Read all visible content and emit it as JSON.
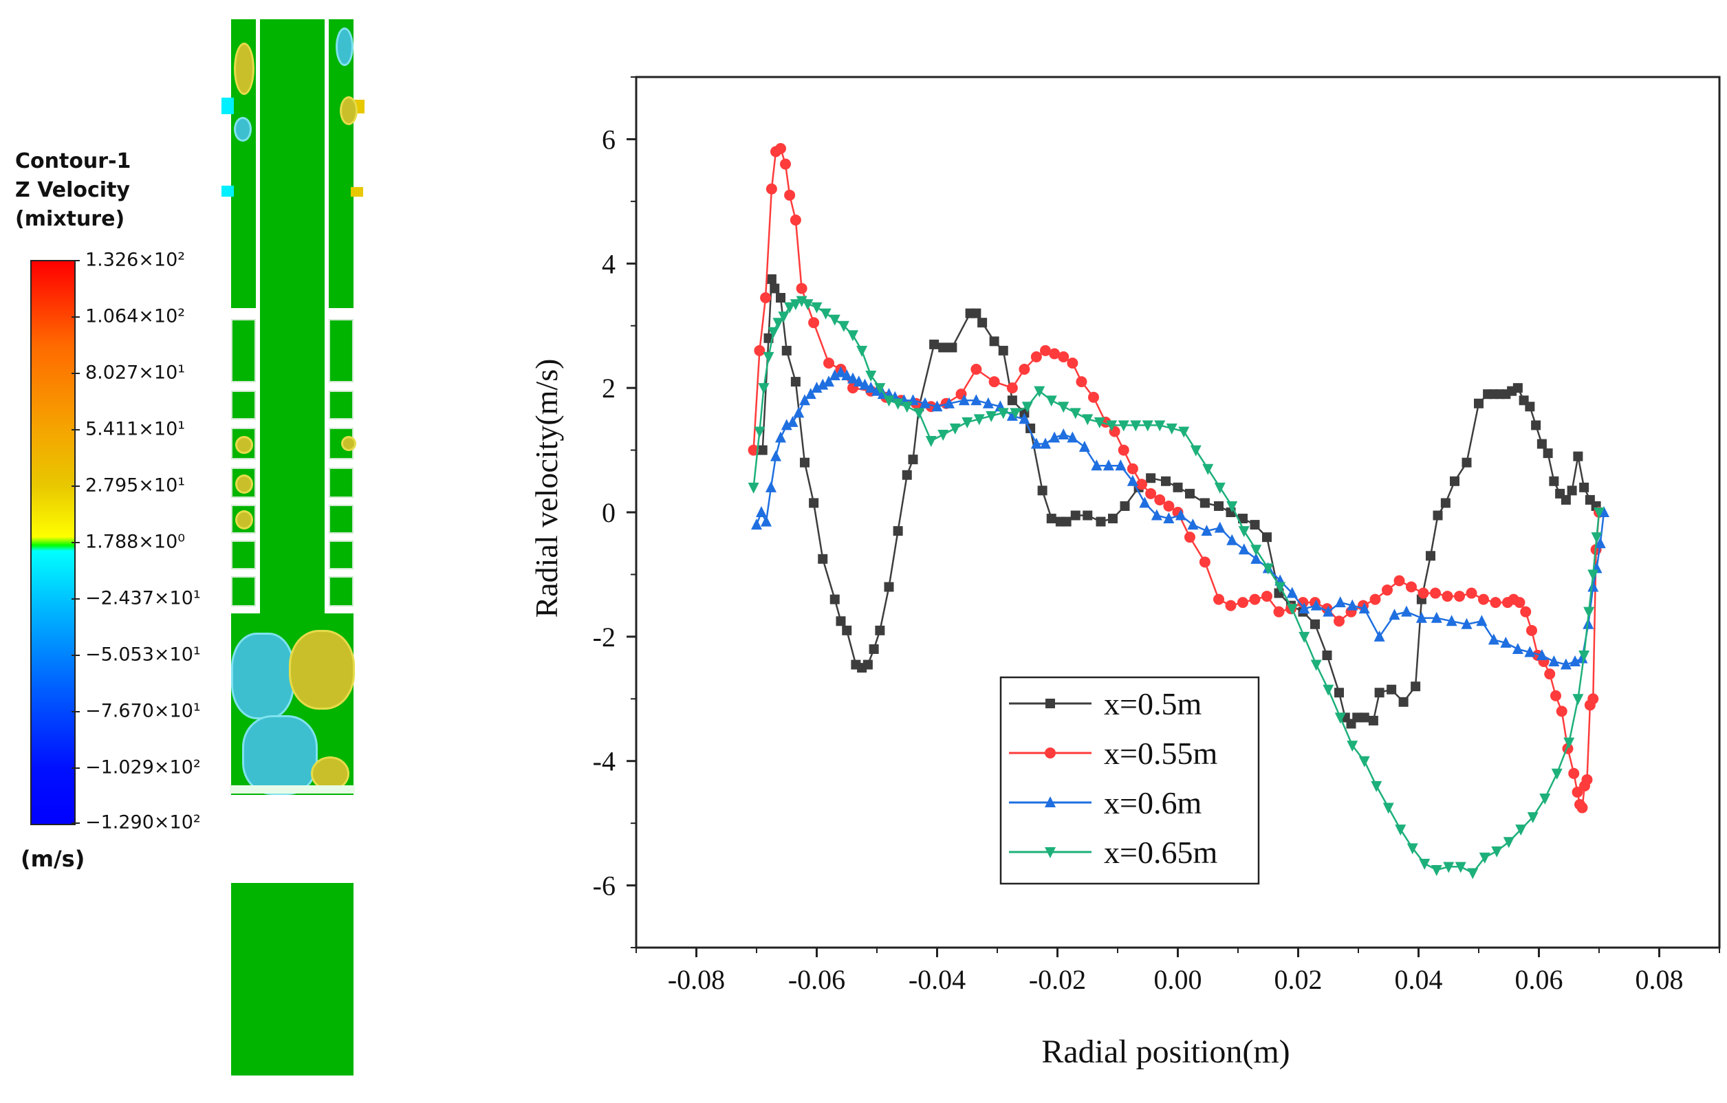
{
  "contour": {
    "title_lines": [
      "Contour-1",
      "Z Velocity",
      "(mixture)"
    ],
    "units": "(m/s)",
    "levels": [
      "1.326×10²",
      "1.064×10²",
      "8.027×10¹",
      "5.411×10¹",
      "2.795×10¹",
      "1.788×10⁰",
      "−2.437×10¹",
      "−5.053×10¹",
      "−7.670×10¹",
      "−1.029×10²",
      "−1.290×10²"
    ],
    "colors": {
      "max": "#ff0000",
      "mid": "#00ff00",
      "min": "#0000ff",
      "field": "#00b400"
    }
  },
  "chart_data": {
    "type": "line",
    "xlabel": "Radial position(m)",
    "ylabel": "Radial velocity(m/s)",
    "xlim": [
      -0.09,
      0.09
    ],
    "ylim": [
      -7,
      7
    ],
    "xticks": [
      -0.08,
      -0.06,
      -0.04,
      -0.02,
      0.0,
      0.02,
      0.04,
      0.06,
      0.08
    ],
    "xtick_labels": [
      "-0.08",
      "-0.06",
      "-0.04",
      "-0.02",
      "0.00",
      "0.02",
      "0.04",
      "0.06",
      "0.08"
    ],
    "yticks": [
      -6,
      -4,
      -2,
      0,
      2,
      4,
      6
    ],
    "ytick_labels": [
      "-6",
      "-4",
      "-2",
      "0",
      "2",
      "4",
      "6"
    ],
    "legend_position": "bottom-center",
    "series": [
      {
        "name": "x=0.5m",
        "color": "#3d3d3d",
        "marker": "square",
        "x": [
          -0.069,
          -0.068,
          -0.0675,
          -0.067,
          -0.066,
          -0.065,
          -0.0635,
          -0.062,
          -0.0605,
          -0.059,
          -0.057,
          -0.056,
          -0.055,
          -0.0535,
          -0.0525,
          -0.0515,
          -0.0505,
          -0.0495,
          -0.048,
          -0.0465,
          -0.045,
          -0.044,
          -0.043,
          -0.0405,
          -0.039,
          -0.0375,
          -0.0345,
          -0.0335,
          -0.0325,
          -0.0305,
          -0.029,
          -0.0275,
          -0.0255,
          -0.0245,
          -0.0225,
          -0.021,
          -0.0195,
          -0.0185,
          -0.017,
          -0.015,
          -0.0128,
          -0.0108,
          -0.0088,
          -0.0065,
          -0.0045,
          -0.002,
          0.0,
          0.002,
          0.0045,
          0.0068,
          0.0088,
          0.0108,
          0.0128,
          0.0148,
          0.0168,
          0.0188,
          0.0208,
          0.0228,
          0.0248,
          0.0268,
          0.0278,
          0.0288,
          0.0298,
          0.031,
          0.0325,
          0.0335,
          0.0355,
          0.0375,
          0.0395,
          0.0405,
          0.042,
          0.0432,
          0.0445,
          0.046,
          0.048,
          0.05,
          0.0515,
          0.0525,
          0.0535,
          0.0545,
          0.0555,
          0.0565,
          0.0575,
          0.0585,
          0.0595,
          0.0605,
          0.0615,
          0.0625,
          0.0635,
          0.0645,
          0.0655,
          0.0665,
          0.0675,
          0.0685,
          0.0695
        ],
        "y": [
          1.0,
          2.8,
          3.75,
          3.6,
          3.45,
          2.6,
          2.1,
          0.8,
          0.15,
          -0.75,
          -1.4,
          -1.75,
          -1.9,
          -2.45,
          -2.5,
          -2.45,
          -2.2,
          -1.9,
          -1.2,
          -0.3,
          0.6,
          0.85,
          1.7,
          2.7,
          2.65,
          2.65,
          3.2,
          3.2,
          3.05,
          2.75,
          2.6,
          1.8,
          1.6,
          1.35,
          0.35,
          -0.1,
          -0.15,
          -0.15,
          -0.05,
          -0.05,
          -0.15,
          -0.1,
          0.1,
          0.4,
          0.55,
          0.5,
          0.4,
          0.3,
          0.15,
          0.1,
          0.0,
          -0.1,
          -0.2,
          -0.4,
          -1.3,
          -1.5,
          -1.6,
          -1.8,
          -2.3,
          -2.9,
          -3.3,
          -3.4,
          -3.3,
          -3.3,
          -3.35,
          -2.9,
          -2.85,
          -3.05,
          -2.8,
          -1.4,
          -0.7,
          -0.05,
          0.15,
          0.5,
          0.8,
          1.75,
          1.9,
          1.9,
          1.9,
          1.9,
          1.95,
          2.0,
          1.8,
          1.7,
          1.4,
          1.1,
          0.95,
          0.5,
          0.3,
          0.2,
          0.35,
          0.9,
          0.4,
          0.2,
          0.1
        ]
      },
      {
        "name": "x=0.55m",
        "color": "#ff3b3b",
        "marker": "circle",
        "x": [
          -0.0705,
          -0.0695,
          -0.0685,
          -0.0675,
          -0.0668,
          -0.066,
          -0.0652,
          -0.0645,
          -0.0635,
          -0.0625,
          -0.0605,
          -0.058,
          -0.056,
          -0.054,
          -0.051,
          -0.0485,
          -0.046,
          -0.0435,
          -0.041,
          -0.0385,
          -0.036,
          -0.0335,
          -0.0305,
          -0.0275,
          -0.0255,
          -0.0235,
          -0.022,
          -0.0205,
          -0.019,
          -0.0175,
          -0.016,
          -0.014,
          -0.012,
          -0.0105,
          -0.009,
          -0.0075,
          -0.006,
          -0.0045,
          -0.003,
          -0.0015,
          0.0,
          0.002,
          0.0045,
          0.0068,
          0.0088,
          0.0108,
          0.0128,
          0.0148,
          0.0168,
          0.0188,
          0.0208,
          0.0228,
          0.0248,
          0.0268,
          0.0288,
          0.0308,
          0.0328,
          0.0348,
          0.0368,
          0.0388,
          0.0408,
          0.0428,
          0.0448,
          0.0468,
          0.0488,
          0.0508,
          0.0528,
          0.0548,
          0.0558,
          0.0568,
          0.0578,
          0.0588,
          0.0598,
          0.0608,
          0.0618,
          0.0628,
          0.0638,
          0.0648,
          0.0658,
          0.0664,
          0.0668,
          0.0672,
          0.0676,
          0.068,
          0.0685,
          0.069,
          0.0695,
          0.07
        ],
        "y": [
          1.0,
          2.6,
          3.45,
          5.2,
          5.8,
          5.85,
          5.6,
          5.1,
          4.7,
          3.6,
          3.05,
          2.4,
          2.3,
          2.0,
          1.95,
          1.85,
          1.8,
          1.75,
          1.7,
          1.75,
          1.9,
          2.3,
          2.1,
          2.0,
          2.3,
          2.5,
          2.6,
          2.55,
          2.5,
          2.4,
          2.1,
          1.85,
          1.45,
          1.3,
          1.0,
          0.7,
          0.45,
          0.3,
          0.2,
          0.1,
          0.0,
          -0.4,
          -0.8,
          -1.4,
          -1.5,
          -1.45,
          -1.4,
          -1.35,
          -1.6,
          -1.55,
          -1.45,
          -1.45,
          -1.55,
          -1.75,
          -1.6,
          -1.5,
          -1.4,
          -1.25,
          -1.1,
          -1.2,
          -1.3,
          -1.3,
          -1.35,
          -1.35,
          -1.3,
          -1.4,
          -1.45,
          -1.45,
          -1.4,
          -1.45,
          -1.6,
          -1.9,
          -2.3,
          -2.4,
          -2.6,
          -2.95,
          -3.2,
          -3.8,
          -4.2,
          -4.5,
          -4.7,
          -4.75,
          -4.4,
          -4.3,
          -3.1,
          -3.0,
          -0.6,
          0.0
        ]
      },
      {
        "name": "x=0.6m",
        "color": "#1f6fe0",
        "marker": "triangle-up",
        "x": [
          -0.07,
          -0.0692,
          -0.0684,
          -0.0676,
          -0.0668,
          -0.066,
          -0.065,
          -0.064,
          -0.063,
          -0.062,
          -0.061,
          -0.06,
          -0.059,
          -0.058,
          -0.057,
          -0.056,
          -0.055,
          -0.054,
          -0.053,
          -0.052,
          -0.051,
          -0.05,
          -0.049,
          -0.048,
          -0.047,
          -0.0455,
          -0.044,
          -0.042,
          -0.04,
          -0.038,
          -0.0355,
          -0.0335,
          -0.0315,
          -0.0295,
          -0.0275,
          -0.0255,
          -0.0235,
          -0.022,
          -0.0205,
          -0.019,
          -0.0175,
          -0.0155,
          -0.0135,
          -0.0115,
          -0.0095,
          -0.0075,
          -0.0055,
          -0.0035,
          -0.0015,
          0.0005,
          0.0025,
          0.0048,
          0.007,
          0.009,
          0.011,
          0.013,
          0.015,
          0.017,
          0.019,
          0.021,
          0.023,
          0.025,
          0.027,
          0.029,
          0.031,
          0.0335,
          0.036,
          0.038,
          0.0405,
          0.043,
          0.0455,
          0.048,
          0.0505,
          0.0525,
          0.0545,
          0.0565,
          0.0585,
          0.0605,
          0.0625,
          0.0645,
          0.066,
          0.0672,
          0.0682,
          0.069,
          0.0696,
          0.0702,
          0.0708
        ],
        "y": [
          -0.2,
          0.0,
          -0.15,
          0.4,
          0.9,
          1.2,
          1.4,
          1.45,
          1.6,
          1.8,
          1.9,
          2.0,
          2.05,
          2.1,
          2.2,
          2.25,
          2.2,
          2.15,
          2.1,
          2.05,
          2.0,
          1.95,
          1.9,
          1.9,
          1.85,
          1.8,
          1.8,
          1.75,
          1.7,
          1.75,
          1.8,
          1.8,
          1.75,
          1.7,
          1.55,
          1.5,
          1.1,
          1.1,
          1.2,
          1.25,
          1.2,
          1.05,
          0.75,
          0.75,
          0.75,
          0.5,
          0.15,
          -0.05,
          -0.1,
          -0.05,
          -0.2,
          -0.3,
          -0.25,
          -0.45,
          -0.6,
          -0.75,
          -0.9,
          -1.1,
          -1.3,
          -1.55,
          -1.5,
          -1.6,
          -1.45,
          -1.5,
          -1.55,
          -2.0,
          -1.65,
          -1.6,
          -1.7,
          -1.7,
          -1.75,
          -1.8,
          -1.75,
          -2.05,
          -2.1,
          -2.2,
          -2.25,
          -2.3,
          -2.4,
          -2.45,
          -2.4,
          -2.35,
          -1.8,
          -1.2,
          -0.9,
          -0.5,
          0.0
        ]
      },
      {
        "name": "x=0.65m",
        "color": "#1db07a",
        "marker": "triangle-down",
        "x": [
          -0.0705,
          -0.0695,
          -0.0688,
          -0.068,
          -0.0672,
          -0.0664,
          -0.0655,
          -0.0645,
          -0.0635,
          -0.0625,
          -0.0615,
          -0.06,
          -0.0585,
          -0.057,
          -0.0555,
          -0.054,
          -0.0525,
          -0.051,
          -0.0495,
          -0.048,
          -0.0465,
          -0.045,
          -0.043,
          -0.041,
          -0.039,
          -0.037,
          -0.035,
          -0.033,
          -0.031,
          -0.029,
          -0.027,
          -0.025,
          -0.023,
          -0.021,
          -0.019,
          -0.017,
          -0.015,
          -0.013,
          -0.011,
          -0.009,
          -0.007,
          -0.005,
          -0.003,
          -0.001,
          0.001,
          0.003,
          0.005,
          0.007,
          0.009,
          0.011,
          0.013,
          0.015,
          0.017,
          0.019,
          0.021,
          0.023,
          0.025,
          0.027,
          0.029,
          0.031,
          0.033,
          0.035,
          0.037,
          0.039,
          0.041,
          0.043,
          0.045,
          0.047,
          0.049,
          0.051,
          0.053,
          0.055,
          0.057,
          0.059,
          0.061,
          0.063,
          0.065,
          0.0665,
          0.0675,
          0.0683,
          0.069,
          0.0696,
          0.07
        ],
        "y": [
          0.4,
          1.3,
          2.0,
          2.5,
          2.9,
          3.05,
          3.15,
          3.3,
          3.35,
          3.4,
          3.35,
          3.3,
          3.2,
          3.1,
          3.0,
          2.85,
          2.6,
          2.2,
          2.0,
          1.8,
          1.75,
          1.7,
          1.6,
          1.15,
          1.25,
          1.35,
          1.45,
          1.5,
          1.55,
          1.6,
          1.6,
          1.7,
          1.95,
          1.8,
          1.7,
          1.6,
          1.5,
          1.45,
          1.4,
          1.4,
          1.4,
          1.4,
          1.4,
          1.35,
          1.3,
          1.0,
          0.7,
          0.4,
          0.1,
          -0.3,
          -0.6,
          -0.9,
          -1.2,
          -1.55,
          -2.0,
          -2.45,
          -2.85,
          -3.3,
          -3.75,
          -4.0,
          -4.4,
          -4.75,
          -5.1,
          -5.4,
          -5.65,
          -5.75,
          -5.7,
          -5.7,
          -5.8,
          -5.55,
          -5.45,
          -5.3,
          -5.1,
          -4.9,
          -4.6,
          -4.2,
          -3.7,
          -3.0,
          -2.3,
          -1.6,
          -1.0,
          -0.4,
          0.0
        ]
      }
    ]
  }
}
